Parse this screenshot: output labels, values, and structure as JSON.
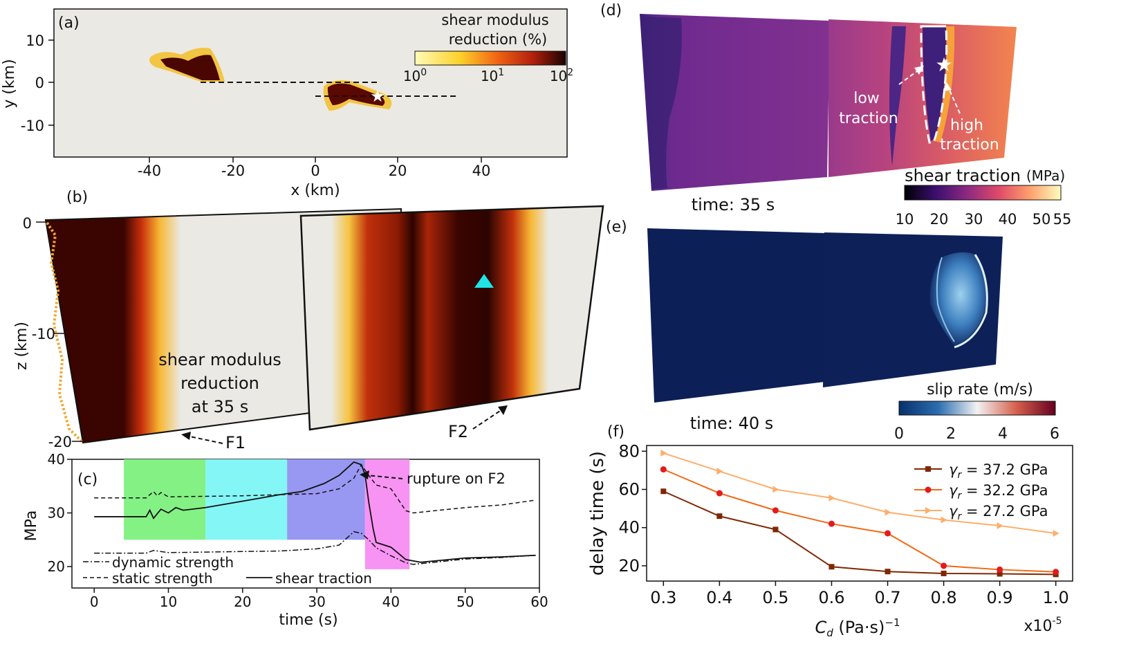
{
  "colors": {
    "panel_bg": "#ebe9e3",
    "traction_dark": "#3b2277",
    "traction_mid": "#c2408a",
    "slip_bg": "#0c1f56",
    "green": "#84f184",
    "cyan": "#84f6f6",
    "blue": "#9897f2",
    "magenta": "#f793f2"
  },
  "panel_a": {
    "label": "(a)",
    "xlabel": "x (km)",
    "ylabel": "y (km)",
    "xticks": [
      "-40",
      "-20",
      "0",
      "20",
      "40"
    ],
    "yticks": [
      "10",
      "0",
      "-10"
    ],
    "colorbar_title": [
      "shear modulus",
      "reduction (%)"
    ],
    "colorbar_ticks": [
      "10",
      "10",
      "10"
    ],
    "colorbar_exponents": [
      "0",
      "1",
      "2"
    ]
  },
  "panel_b": {
    "label": "(b)",
    "zlabel": "z (km)",
    "zticks": [
      "0",
      "-10",
      "-20"
    ],
    "annotation": [
      "shear modulus",
      "reduction",
      "at 35 s"
    ],
    "fault1": "F1",
    "fault2": "F2"
  },
  "panel_c": {
    "label": "(c)",
    "ylabel": "MPa",
    "xlabel": "time (s)",
    "annotation": "rupture on F2",
    "legend": [
      "dynamic strength",
      "static strength",
      "shear traction"
    ]
  },
  "panel_d": {
    "label": "(d)",
    "time_label": "time: 35 s",
    "low_label": [
      "low",
      "traction"
    ],
    "high_label": [
      "high",
      "traction"
    ],
    "colorbar_title": "shear traction",
    "colorbar_unit": "(MPa)",
    "colorbar_ticks": [
      "10",
      "20",
      "30",
      "40",
      "50",
      "55"
    ]
  },
  "panel_e": {
    "label": "(e)",
    "time_label": "time: 40 s",
    "colorbar_title": "slip rate (m/s)",
    "colorbar_ticks": [
      "0",
      "2",
      "4",
      "6"
    ]
  },
  "panel_f": {
    "label": "(f)",
    "ylabel": "delay time (s)",
    "xlabel": "C_d (Pa·s)^-1",
    "xlabel_main": "C",
    "xlabel_sub": "d",
    "xlabel_rest": " (Pa·s)",
    "xlabel_sup": "−1",
    "multiplier": "x10",
    "multiplier_exp": "-5",
    "legend_symbol": "γ",
    "legend_sub": "r"
  },
  "chart_data": [
    {
      "type": "line",
      "panel": "c",
      "xlabel": "time (s)",
      "ylabel": "MPa",
      "xlim": [
        -3,
        60
      ],
      "ylim": [
        16,
        40
      ],
      "xticks": [
        0,
        10,
        20,
        30,
        40,
        50,
        60
      ],
      "yticks": [
        20,
        30,
        40
      ],
      "shaded_spans": [
        {
          "x": [
            4,
            15
          ],
          "y": [
            25,
            40
          ],
          "color": "green"
        },
        {
          "x": [
            15,
            26
          ],
          "y": [
            25,
            40
          ],
          "color": "cyan"
        },
        {
          "x": [
            26,
            36.5
          ],
          "y": [
            25,
            40
          ],
          "color": "blue"
        },
        {
          "x": [
            36.5,
            42.5
          ],
          "y": [
            19.5,
            40
          ],
          "color": "magenta"
        }
      ],
      "series": [
        {
          "name": "shear traction",
          "style": "solid",
          "x": [
            0,
            7,
            7.5,
            8,
            9,
            10,
            11,
            12,
            15,
            20,
            25,
            28,
            31,
            33,
            35,
            36,
            36.5,
            37,
            37.6,
            38,
            40,
            42,
            44,
            50,
            55,
            59.5
          ],
          "y": [
            29.3,
            29.3,
            30.5,
            29.0,
            30.7,
            30.0,
            31.0,
            30.5,
            31.0,
            32.2,
            33.4,
            34.0,
            35.5,
            37.0,
            39.5,
            39.0,
            37.2,
            32.0,
            27.0,
            24.5,
            23.6,
            21.3,
            20.8,
            21.6,
            21.8,
            22.1
          ]
        },
        {
          "name": "static strength",
          "style": "dashed",
          "x": [
            0,
            7,
            8,
            8.5,
            9,
            10,
            15,
            20,
            25,
            30,
            33,
            35,
            36,
            37,
            38,
            40,
            42,
            43,
            50,
            55,
            59.5
          ],
          "y": [
            32.8,
            32.8,
            34.0,
            33.2,
            33.8,
            33.0,
            33.1,
            33.2,
            33.4,
            33.6,
            34.5,
            36.5,
            39.0,
            37.0,
            35.2,
            34.5,
            30.4,
            30.0,
            31.0,
            31.5,
            32.4
          ]
        },
        {
          "name": "dynamic strength",
          "style": "dashdot",
          "x": [
            0,
            7,
            8,
            10,
            15,
            20,
            25,
            30,
            33,
            35,
            36,
            37,
            38,
            40,
            42,
            43,
            50,
            55,
            59.5
          ],
          "y": [
            22.5,
            22.5,
            23.0,
            22.6,
            22.7,
            22.8,
            22.9,
            23.3,
            24.0,
            26.5,
            26.2,
            25.0,
            23.5,
            22.0,
            20.7,
            20.4,
            21.4,
            21.7,
            22.1
          ]
        }
      ]
    },
    {
      "type": "line",
      "panel": "f",
      "xlabel": "C_d (Pa·s)^-1",
      "ylabel": "delay time (s)",
      "xlim": [
        0.27,
        1.03
      ],
      "ylim": [
        12,
        83
      ],
      "xticks": [
        0.3,
        0.4,
        0.5,
        0.6,
        0.7,
        0.8,
        0.9,
        1.0
      ],
      "x_tick_labels": [
        "0.3",
        "0.4",
        "0.5",
        "0.6",
        "0.7",
        "0.8",
        "0.9",
        "1.0"
      ],
      "yticks": [
        20,
        40,
        60,
        80
      ],
      "x": [
        0.3,
        0.4,
        0.5,
        0.6,
        0.7,
        0.8,
        0.9,
        1.0
      ],
      "series": [
        {
          "name": "= 37.2 GPa",
          "color": "#7f2704",
          "marker": "square",
          "values": [
            59,
            46,
            39,
            19.5,
            17,
            16,
            15.8,
            15.5
          ]
        },
        {
          "name": "= 32.2 GPa",
          "color": "#f16913",
          "marker": "circle",
          "values": [
            70.5,
            58,
            49,
            42,
            37,
            20,
            18,
            16.8
          ]
        },
        {
          "name": "= 27.2 GPa",
          "color": "#fdae6b",
          "marker": "triangle",
          "values": [
            79,
            69.5,
            60,
            55.5,
            48,
            44,
            41,
            37
          ]
        }
      ]
    }
  ]
}
